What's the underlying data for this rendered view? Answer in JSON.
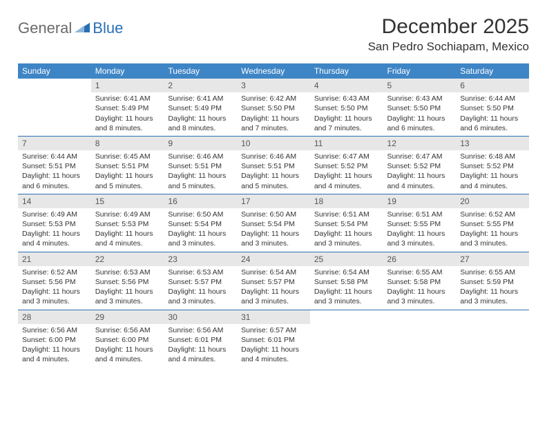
{
  "brand": {
    "text1": "General",
    "text2": "Blue"
  },
  "title": "December 2025",
  "location": "San Pedro Sochiapam, Mexico",
  "colors": {
    "header_bg": "#3e85c6",
    "header_fg": "#ffffff",
    "daynum_bg": "#e7e7e7",
    "rule": "#2a6fb5",
    "brand_gray": "#6a6a6a",
    "brand_blue": "#2a6fb5"
  },
  "day_headers": [
    "Sunday",
    "Monday",
    "Tuesday",
    "Wednesday",
    "Thursday",
    "Friday",
    "Saturday"
  ],
  "weeks": [
    [
      {
        "n": "",
        "sr": "",
        "ss": "",
        "dl": ""
      },
      {
        "n": "1",
        "sr": "Sunrise: 6:41 AM",
        "ss": "Sunset: 5:49 PM",
        "dl": "Daylight: 11 hours and 8 minutes."
      },
      {
        "n": "2",
        "sr": "Sunrise: 6:41 AM",
        "ss": "Sunset: 5:49 PM",
        "dl": "Daylight: 11 hours and 8 minutes."
      },
      {
        "n": "3",
        "sr": "Sunrise: 6:42 AM",
        "ss": "Sunset: 5:50 PM",
        "dl": "Daylight: 11 hours and 7 minutes."
      },
      {
        "n": "4",
        "sr": "Sunrise: 6:43 AM",
        "ss": "Sunset: 5:50 PM",
        "dl": "Daylight: 11 hours and 7 minutes."
      },
      {
        "n": "5",
        "sr": "Sunrise: 6:43 AM",
        "ss": "Sunset: 5:50 PM",
        "dl": "Daylight: 11 hours and 6 minutes."
      },
      {
        "n": "6",
        "sr": "Sunrise: 6:44 AM",
        "ss": "Sunset: 5:50 PM",
        "dl": "Daylight: 11 hours and 6 minutes."
      }
    ],
    [
      {
        "n": "7",
        "sr": "Sunrise: 6:44 AM",
        "ss": "Sunset: 5:51 PM",
        "dl": "Daylight: 11 hours and 6 minutes."
      },
      {
        "n": "8",
        "sr": "Sunrise: 6:45 AM",
        "ss": "Sunset: 5:51 PM",
        "dl": "Daylight: 11 hours and 5 minutes."
      },
      {
        "n": "9",
        "sr": "Sunrise: 6:46 AM",
        "ss": "Sunset: 5:51 PM",
        "dl": "Daylight: 11 hours and 5 minutes."
      },
      {
        "n": "10",
        "sr": "Sunrise: 6:46 AM",
        "ss": "Sunset: 5:51 PM",
        "dl": "Daylight: 11 hours and 5 minutes."
      },
      {
        "n": "11",
        "sr": "Sunrise: 6:47 AM",
        "ss": "Sunset: 5:52 PM",
        "dl": "Daylight: 11 hours and 4 minutes."
      },
      {
        "n": "12",
        "sr": "Sunrise: 6:47 AM",
        "ss": "Sunset: 5:52 PM",
        "dl": "Daylight: 11 hours and 4 minutes."
      },
      {
        "n": "13",
        "sr": "Sunrise: 6:48 AM",
        "ss": "Sunset: 5:52 PM",
        "dl": "Daylight: 11 hours and 4 minutes."
      }
    ],
    [
      {
        "n": "14",
        "sr": "Sunrise: 6:49 AM",
        "ss": "Sunset: 5:53 PM",
        "dl": "Daylight: 11 hours and 4 minutes."
      },
      {
        "n": "15",
        "sr": "Sunrise: 6:49 AM",
        "ss": "Sunset: 5:53 PM",
        "dl": "Daylight: 11 hours and 4 minutes."
      },
      {
        "n": "16",
        "sr": "Sunrise: 6:50 AM",
        "ss": "Sunset: 5:54 PM",
        "dl": "Daylight: 11 hours and 3 minutes."
      },
      {
        "n": "17",
        "sr": "Sunrise: 6:50 AM",
        "ss": "Sunset: 5:54 PM",
        "dl": "Daylight: 11 hours and 3 minutes."
      },
      {
        "n": "18",
        "sr": "Sunrise: 6:51 AM",
        "ss": "Sunset: 5:54 PM",
        "dl": "Daylight: 11 hours and 3 minutes."
      },
      {
        "n": "19",
        "sr": "Sunrise: 6:51 AM",
        "ss": "Sunset: 5:55 PM",
        "dl": "Daylight: 11 hours and 3 minutes."
      },
      {
        "n": "20",
        "sr": "Sunrise: 6:52 AM",
        "ss": "Sunset: 5:55 PM",
        "dl": "Daylight: 11 hours and 3 minutes."
      }
    ],
    [
      {
        "n": "21",
        "sr": "Sunrise: 6:52 AM",
        "ss": "Sunset: 5:56 PM",
        "dl": "Daylight: 11 hours and 3 minutes."
      },
      {
        "n": "22",
        "sr": "Sunrise: 6:53 AM",
        "ss": "Sunset: 5:56 PM",
        "dl": "Daylight: 11 hours and 3 minutes."
      },
      {
        "n": "23",
        "sr": "Sunrise: 6:53 AM",
        "ss": "Sunset: 5:57 PM",
        "dl": "Daylight: 11 hours and 3 minutes."
      },
      {
        "n": "24",
        "sr": "Sunrise: 6:54 AM",
        "ss": "Sunset: 5:57 PM",
        "dl": "Daylight: 11 hours and 3 minutes."
      },
      {
        "n": "25",
        "sr": "Sunrise: 6:54 AM",
        "ss": "Sunset: 5:58 PM",
        "dl": "Daylight: 11 hours and 3 minutes."
      },
      {
        "n": "26",
        "sr": "Sunrise: 6:55 AM",
        "ss": "Sunset: 5:58 PM",
        "dl": "Daylight: 11 hours and 3 minutes."
      },
      {
        "n": "27",
        "sr": "Sunrise: 6:55 AM",
        "ss": "Sunset: 5:59 PM",
        "dl": "Daylight: 11 hours and 3 minutes."
      }
    ],
    [
      {
        "n": "28",
        "sr": "Sunrise: 6:56 AM",
        "ss": "Sunset: 6:00 PM",
        "dl": "Daylight: 11 hours and 4 minutes."
      },
      {
        "n": "29",
        "sr": "Sunrise: 6:56 AM",
        "ss": "Sunset: 6:00 PM",
        "dl": "Daylight: 11 hours and 4 minutes."
      },
      {
        "n": "30",
        "sr": "Sunrise: 6:56 AM",
        "ss": "Sunset: 6:01 PM",
        "dl": "Daylight: 11 hours and 4 minutes."
      },
      {
        "n": "31",
        "sr": "Sunrise: 6:57 AM",
        "ss": "Sunset: 6:01 PM",
        "dl": "Daylight: 11 hours and 4 minutes."
      },
      {
        "n": "",
        "sr": "",
        "ss": "",
        "dl": ""
      },
      {
        "n": "",
        "sr": "",
        "ss": "",
        "dl": ""
      },
      {
        "n": "",
        "sr": "",
        "ss": "",
        "dl": ""
      }
    ]
  ]
}
